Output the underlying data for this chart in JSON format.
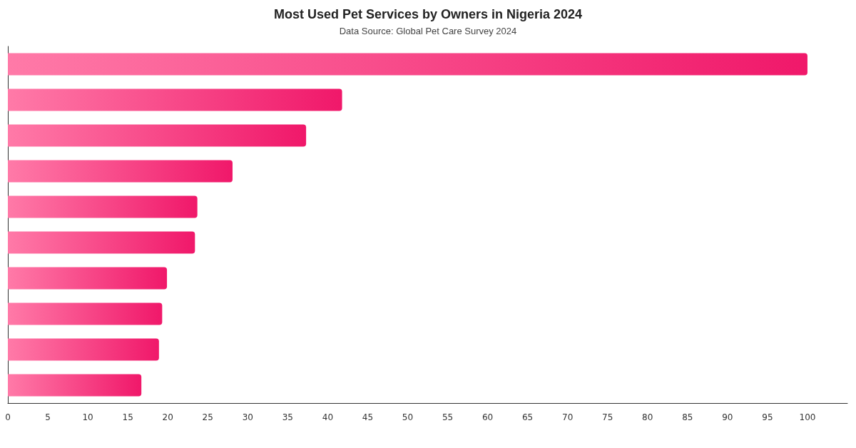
{
  "chart_data": {
    "type": "bar",
    "orientation": "horizontal",
    "title": "Most Used Pet Services by Owners in Nigeria 2024",
    "subtitle": "Data Source: Global Pet Care Survey 2024",
    "categories": [
      null,
      null,
      null,
      null,
      null,
      null,
      null,
      null,
      null,
      null
    ],
    "values": [
      100,
      41.8,
      37.3,
      28.1,
      23.7,
      23.4,
      19.9,
      19.3,
      18.9,
      16.7
    ],
    "color": "#f0186a",
    "xlim": [
      0,
      105
    ],
    "xticks": [
      0,
      5,
      10,
      15,
      20,
      25,
      30,
      35,
      40,
      45,
      50,
      55,
      60,
      65,
      70,
      75,
      80,
      85,
      90,
      95,
      100
    ]
  }
}
